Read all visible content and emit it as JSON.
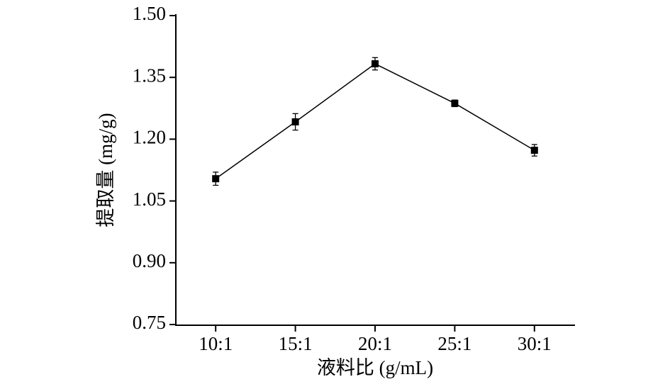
{
  "chart_data": {
    "type": "line",
    "x_label": "液料比 (g/mL)",
    "y_label": "提取量 (mg/g)",
    "categories": [
      "10:1",
      "15:1",
      "20:1",
      "25:1",
      "30:1"
    ],
    "values": [
      1.104,
      1.242,
      1.383,
      1.287,
      1.173
    ],
    "errors": [
      0.016,
      0.02,
      0.015,
      0.008,
      0.014
    ],
    "color": "#000000",
    "ylim": [
      0.75,
      1.5
    ],
    "yticks": [
      0.75,
      {
        "value": 0.9,
        "label": "0.90"
      },
      1.05,
      {
        "value": 1.2,
        "label": "1.20"
      },
      1.35,
      {
        "value": 1.5,
        "label": "1.50"
      }
    ],
    "grid": false
  }
}
